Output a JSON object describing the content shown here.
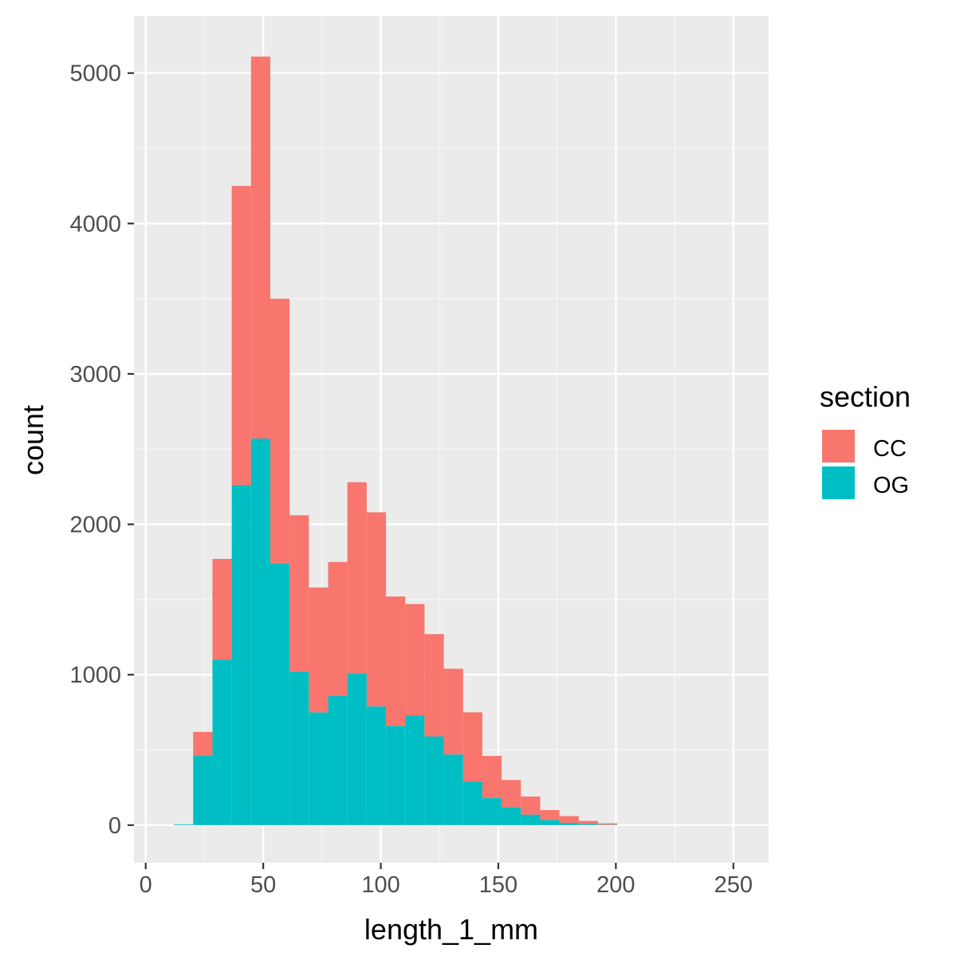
{
  "chart_data": {
    "type": "bar",
    "subtype": "stacked-histogram",
    "xlabel": "length_1_mm",
    "ylabel": "count",
    "xlim": [
      -5,
      265
    ],
    "ylim": [
      -250,
      5380
    ],
    "x_ticks": [
      0,
      50,
      100,
      150,
      200,
      250
    ],
    "x_tick_labels": [
      "0",
      "50",
      "100",
      "150",
      "200",
      "250"
    ],
    "y_ticks": [
      0,
      1000,
      2000,
      3000,
      4000,
      5000
    ],
    "y_tick_labels": [
      "0",
      "1000",
      "2000",
      "3000",
      "4000",
      "5000"
    ],
    "grid": true,
    "legend": {
      "title": "section",
      "position": "right",
      "entries": [
        {
          "label": "CC",
          "color": "#F8766D"
        },
        {
          "label": "OG",
          "color": "#00BFC4"
        }
      ]
    },
    "bin_width": 8.2,
    "bin_starts": [
      12,
      20.2,
      28.4,
      36.6,
      44.8,
      53,
      61.2,
      69.4,
      77.6,
      85.8,
      94,
      102.2,
      110.4,
      118.6,
      126.8,
      135,
      143.2,
      151.4,
      159.6,
      167.8,
      176,
      184.2,
      192.4
    ],
    "series": [
      {
        "name": "OG",
        "color": "#00BFC4",
        "values": [
          5,
          460,
          1100,
          2260,
          2570,
          1740,
          1020,
          750,
          860,
          1010,
          790,
          660,
          730,
          590,
          470,
          290,
          180,
          120,
          70,
          35,
          15,
          8,
          3
        ]
      },
      {
        "name": "CC",
        "color": "#F8766D",
        "values": [
          0,
          160,
          670,
          1990,
          2540,
          1760,
          1040,
          830,
          890,
          1270,
          1290,
          860,
          740,
          680,
          570,
          460,
          280,
          180,
          120,
          65,
          45,
          20,
          9
        ]
      }
    ]
  },
  "colors": {
    "panel_background": "#EBEBEB",
    "grid_major": "#FFFFFF",
    "grid_minor": "#F7F7F7",
    "tick_mark": "#333333"
  }
}
